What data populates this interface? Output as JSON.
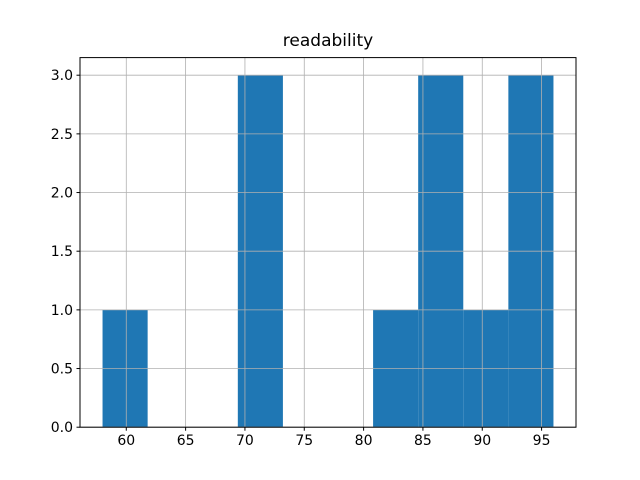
{
  "chart_data": {
    "type": "histogram",
    "title": "readability",
    "xlabel": "",
    "ylabel": "",
    "bin_edges": [
      58.0,
      61.8,
      65.6,
      69.4,
      73.2,
      77.0,
      80.8,
      84.6,
      88.4,
      92.2,
      96.0
    ],
    "counts": [
      1,
      0,
      0,
      3,
      0,
      0,
      1,
      3,
      1,
      3
    ],
    "xticks": [
      60,
      65,
      70,
      75,
      80,
      85,
      90,
      95
    ],
    "xtick_labels": [
      "60",
      "65",
      "70",
      "75",
      "80",
      "85",
      "90",
      "95"
    ],
    "yticks": [
      0.0,
      0.5,
      1.0,
      1.5,
      2.0,
      2.5,
      3.0
    ],
    "ytick_labels": [
      "0.0",
      "0.5",
      "1.0",
      "1.5",
      "2.0",
      "2.5",
      "3.0"
    ],
    "xlim": [
      56.1,
      97.9
    ],
    "ylim": [
      0,
      3.15
    ],
    "grid": true,
    "grid_above_bars": true,
    "legend": false,
    "bar_color": "#1f77b4",
    "grid_color": "#b0b0b0",
    "spine_color": "#000000",
    "tick_color": "#000000",
    "background_color": "#ffffff"
  }
}
